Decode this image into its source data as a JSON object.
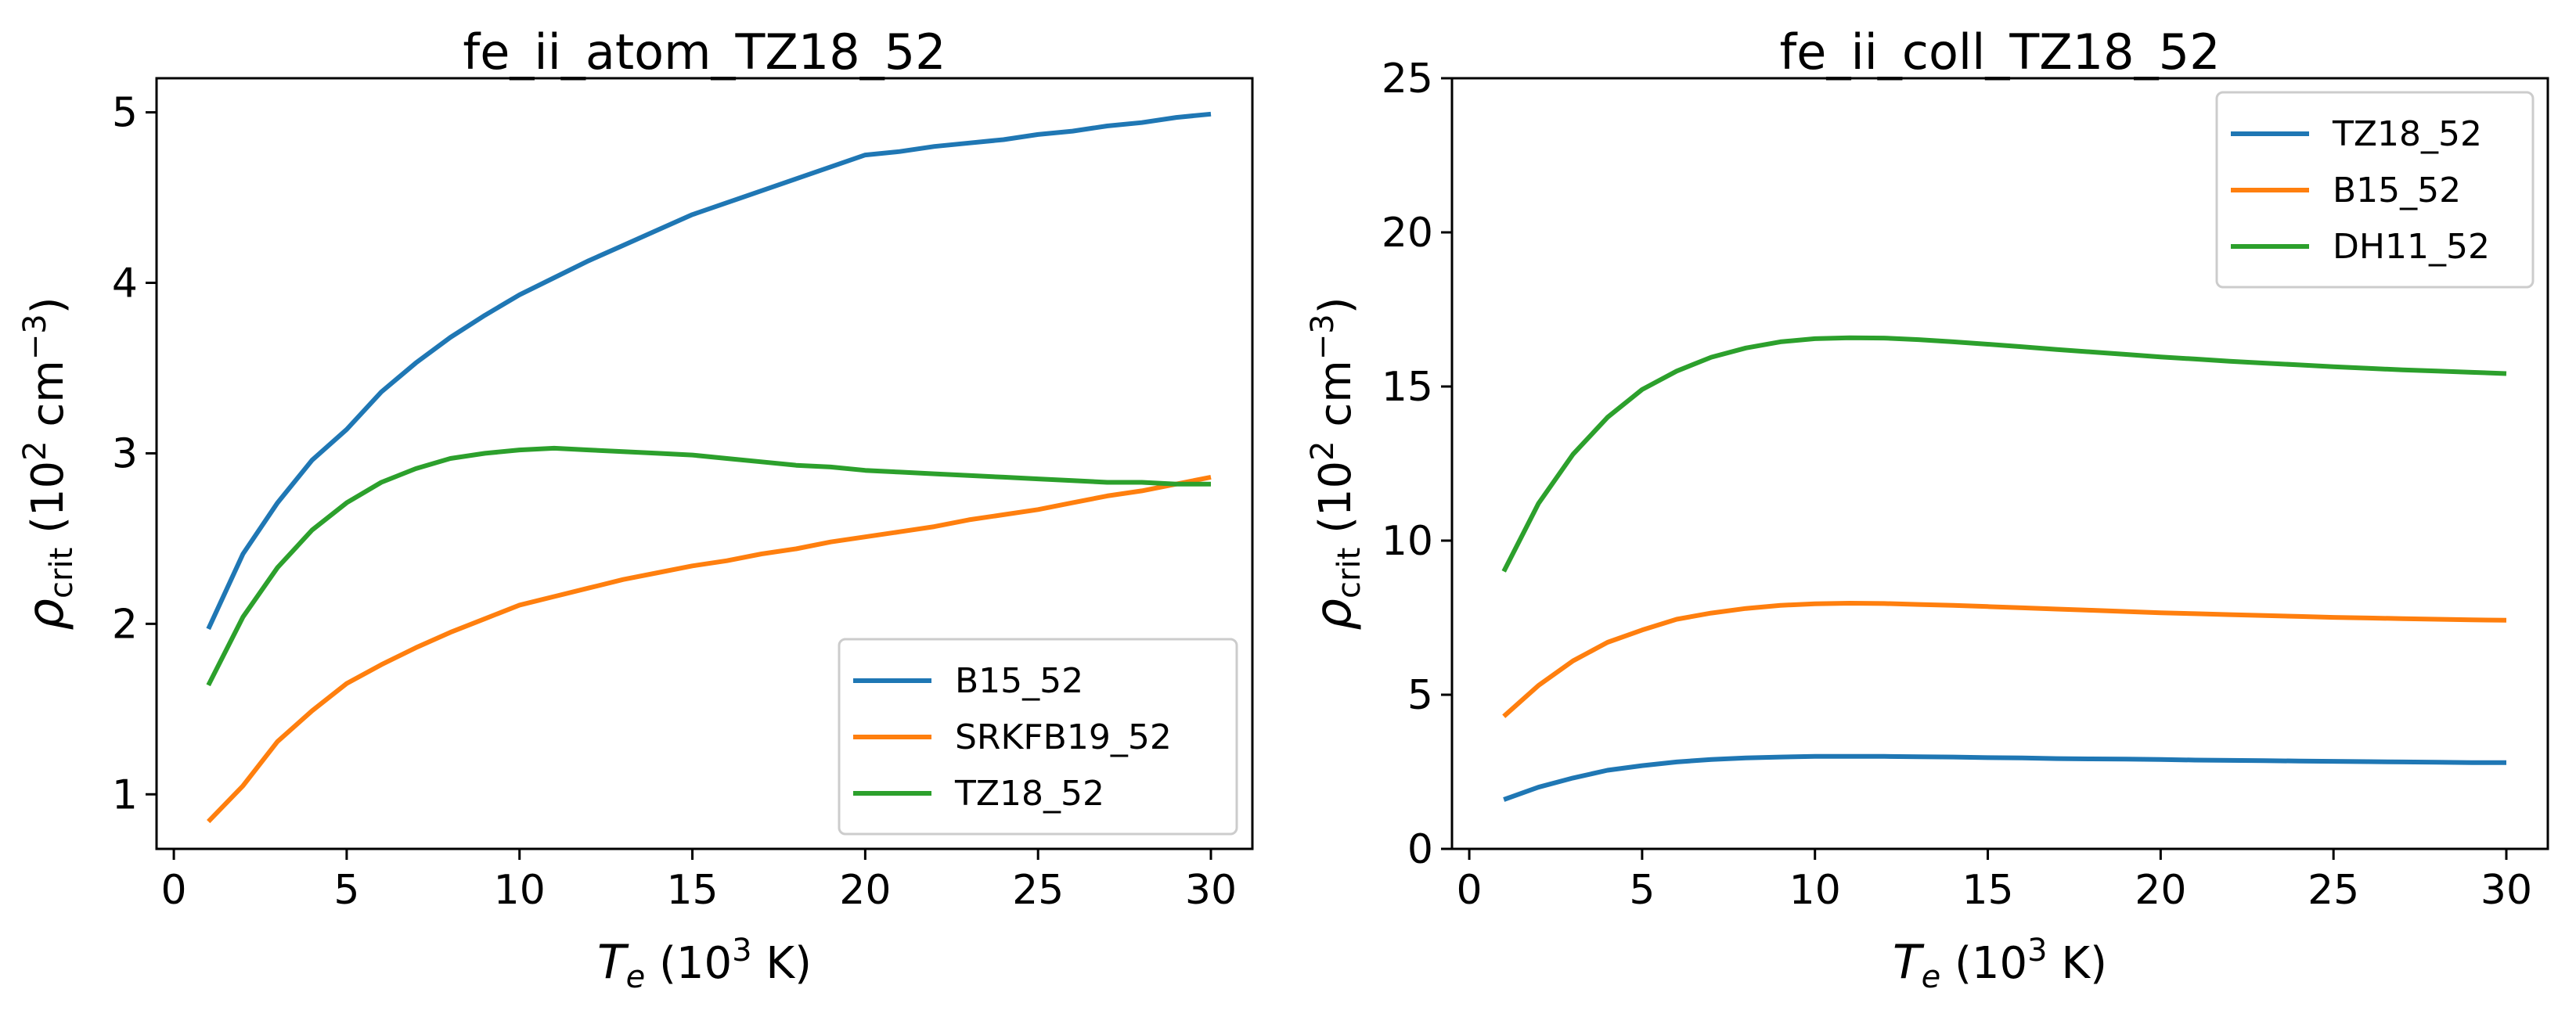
{
  "colors": {
    "blue": "#1f77b4",
    "orange": "#ff7f0e",
    "green": "#2ca02c"
  },
  "chart_data": [
    {
      "type": "line",
      "title": "fe_ii_atom_TZ18_52",
      "xlabel": {
        "sym": "T",
        "sub": "e",
        "rest": " (10",
        "sup": "3",
        "end": " K)"
      },
      "ylabel": {
        "sym": "ρ",
        "sub": "crit",
        "rest": " (10",
        "sup": "2",
        "mid": " cm",
        "sup2": "−3",
        "end": ")"
      },
      "xlim": [
        -0.5,
        31.2
      ],
      "ylim": [
        0.68,
        5.2
      ],
      "xticks": [
        0,
        5,
        10,
        15,
        20,
        25,
        30
      ],
      "yticks": [
        1,
        2,
        3,
        4,
        5
      ],
      "legend_position": "lower-right",
      "x": [
        1,
        2,
        3,
        4,
        5,
        6,
        7,
        8,
        9,
        10,
        11,
        12,
        13,
        14,
        15,
        16,
        17,
        18,
        19,
        20,
        21,
        22,
        23,
        24,
        25,
        26,
        27,
        28,
        29,
        30
      ],
      "series": [
        {
          "name": "B15_52",
          "color": "#1f77b4",
          "values": [
            1.97,
            2.41,
            2.71,
            2.96,
            3.14,
            3.36,
            3.53,
            3.68,
            3.81,
            3.93,
            4.03,
            4.13,
            4.22,
            4.31,
            4.4,
            4.47,
            4.54,
            4.61,
            4.68,
            4.75,
            4.77,
            4.8,
            4.82,
            4.84,
            4.87,
            4.89,
            4.92,
            4.94,
            4.97,
            4.99
          ]
        },
        {
          "name": "SRKFB19_52",
          "color": "#ff7f0e",
          "values": [
            0.84,
            1.05,
            1.31,
            1.49,
            1.65,
            1.76,
            1.86,
            1.95,
            2.03,
            2.11,
            2.16,
            2.21,
            2.26,
            2.3,
            2.34,
            2.37,
            2.41,
            2.44,
            2.48,
            2.51,
            2.54,
            2.57,
            2.61,
            2.64,
            2.67,
            2.71,
            2.75,
            2.78,
            2.82,
            2.86
          ]
        },
        {
          "name": "TZ18_52",
          "color": "#2ca02c",
          "values": [
            1.64,
            2.04,
            2.33,
            2.55,
            2.71,
            2.83,
            2.91,
            2.97,
            3.0,
            3.02,
            3.03,
            3.02,
            3.01,
            3.0,
            2.99,
            2.97,
            2.95,
            2.93,
            2.92,
            2.9,
            2.89,
            2.88,
            2.87,
            2.86,
            2.85,
            2.84,
            2.83,
            2.83,
            2.82,
            2.82
          ]
        }
      ]
    },
    {
      "type": "line",
      "title": "fe_ii_coll_TZ18_52",
      "xlabel": {
        "sym": "T",
        "sub": "e",
        "rest": " (10",
        "sup": "3",
        "end": " K)"
      },
      "ylabel": {
        "sym": "ρ",
        "sub": "crit",
        "rest": " (10",
        "sup": "2",
        "mid": " cm",
        "sup2": "−3",
        "end": ")"
      },
      "xlim": [
        -0.5,
        31.2
      ],
      "ylim": [
        0,
        25
      ],
      "xticks": [
        0,
        5,
        10,
        15,
        20,
        25,
        30
      ],
      "yticks": [
        0,
        5,
        10,
        15,
        20,
        25
      ],
      "legend_position": "upper-right",
      "x": [
        1,
        2,
        3,
        4,
        5,
        6,
        7,
        8,
        9,
        10,
        11,
        12,
        13,
        14,
        15,
        16,
        17,
        18,
        19,
        20,
        21,
        22,
        23,
        24,
        25,
        26,
        27,
        28,
        29,
        30
      ],
      "series": [
        {
          "name": "TZ18_52",
          "color": "#1f77b4",
          "values": [
            1.6,
            2.0,
            2.3,
            2.55,
            2.7,
            2.82,
            2.9,
            2.95,
            2.98,
            3.0,
            3.0,
            3.0,
            2.99,
            2.98,
            2.96,
            2.95,
            2.93,
            2.92,
            2.91,
            2.9,
            2.88,
            2.87,
            2.86,
            2.85,
            2.84,
            2.83,
            2.82,
            2.81,
            2.8,
            2.8
          ]
        },
        {
          "name": "B15_52",
          "color": "#ff7f0e",
          "values": [
            4.3,
            5.3,
            6.1,
            6.7,
            7.1,
            7.45,
            7.65,
            7.8,
            7.9,
            7.95,
            7.97,
            7.96,
            7.93,
            7.9,
            7.86,
            7.82,
            7.78,
            7.74,
            7.7,
            7.66,
            7.63,
            7.6,
            7.57,
            7.54,
            7.51,
            7.49,
            7.47,
            7.45,
            7.43,
            7.42
          ]
        },
        {
          "name": "DH11_52",
          "color": "#2ca02c",
          "values": [
            9.0,
            11.2,
            12.8,
            14.0,
            14.9,
            15.5,
            15.95,
            16.25,
            16.45,
            16.55,
            16.58,
            16.57,
            16.52,
            16.45,
            16.37,
            16.29,
            16.2,
            16.12,
            16.04,
            15.96,
            15.89,
            15.82,
            15.76,
            15.7,
            15.64,
            15.59,
            15.54,
            15.5,
            15.46,
            15.42
          ]
        }
      ]
    }
  ]
}
